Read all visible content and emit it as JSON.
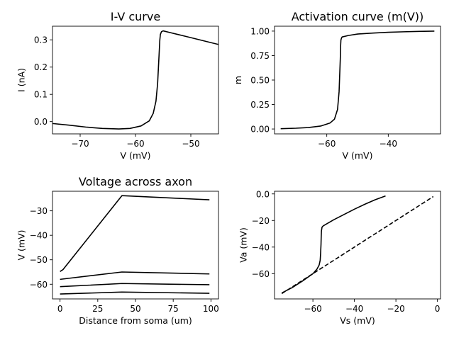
{
  "chart_data": [
    {
      "id": "p1",
      "type": "line",
      "title": "I-V curve",
      "xlabel": "V (mV)",
      "ylabel": "I (nA)",
      "xlim": [
        -75,
        -45
      ],
      "ylim": [
        -0.045,
        0.35
      ],
      "xticks": [
        -70,
        -60,
        -50
      ],
      "yticks": [
        0.0,
        0.1,
        0.2,
        0.3
      ],
      "grid": false,
      "series": [
        {
          "style": "solid",
          "color": "#000000",
          "x": [
            -75,
            -72,
            -69,
            -66,
            -63,
            -61,
            -59,
            -57.5,
            -56.8,
            -56.3,
            -56.0,
            -55.85,
            -55.7,
            -55.6,
            -55.5,
            -55.3,
            -55.0,
            -54.0,
            -52.0,
            -50.0,
            -48.0,
            -46.0,
            -45.0
          ],
          "y": [
            -0.007,
            -0.013,
            -0.02,
            -0.025,
            -0.027,
            -0.025,
            -0.016,
            0.003,
            0.03,
            0.075,
            0.14,
            0.2,
            0.26,
            0.3,
            0.32,
            0.33,
            0.333,
            0.328,
            0.318,
            0.308,
            0.298,
            0.288,
            0.283
          ]
        }
      ]
    },
    {
      "id": "p2",
      "type": "line",
      "title": "Activation curve (m(V))",
      "xlabel": "V (mV)",
      "ylabel": "m",
      "xlim": [
        -77,
        -23
      ],
      "ylim": [
        -0.05,
        1.05
      ],
      "xticks": [
        -60,
        -40
      ],
      "yticks": [
        0.0,
        0.25,
        0.5,
        0.75,
        1.0
      ],
      "ytick_labels": [
        "0.00",
        "0.25",
        "0.50",
        "0.75",
        "1.00"
      ],
      "grid": false,
      "series": [
        {
          "style": "solid",
          "color": "#000000",
          "x": [
            -75,
            -70,
            -66,
            -62,
            -59,
            -57.5,
            -56.5,
            -56.0,
            -55.8,
            -55.6,
            -55.5,
            -55.4,
            -55.2,
            -55.0,
            -53,
            -50,
            -45,
            -40,
            -35,
            -30,
            -25
          ],
          "y": [
            0.003,
            0.008,
            0.015,
            0.03,
            0.06,
            0.1,
            0.2,
            0.38,
            0.55,
            0.72,
            0.85,
            0.91,
            0.93,
            0.94,
            0.955,
            0.97,
            0.98,
            0.988,
            0.993,
            0.997,
            1.0
          ]
        }
      ]
    },
    {
      "id": "p3",
      "type": "line",
      "title": "Voltage across axon",
      "xlabel": "Distance from soma (um)",
      "ylabel": "V (mV)",
      "xlim": [
        -5,
        105
      ],
      "ylim": [
        -66,
        -22
      ],
      "xticks": [
        0,
        25,
        50,
        75,
        100
      ],
      "yticks": [
        -60,
        -50,
        -40,
        -30
      ],
      "grid": false,
      "series": [
        {
          "style": "solid",
          "color": "#000000",
          "x": [
            0,
            2,
            41,
            99
          ],
          "y": [
            -54.8,
            -54.0,
            -23.8,
            -25.5
          ]
        },
        {
          "style": "solid",
          "color": "#000000",
          "x": [
            0,
            41,
            99
          ],
          "y": [
            -58.0,
            -55.0,
            -55.8
          ]
        },
        {
          "style": "solid",
          "color": "#000000",
          "x": [
            0,
            41,
            99
          ],
          "y": [
            -61.0,
            -59.7,
            -60.2
          ]
        },
        {
          "style": "solid",
          "color": "#000000",
          "x": [
            0,
            41,
            99
          ],
          "y": [
            -64.0,
            -63.2,
            -63.7
          ]
        }
      ]
    },
    {
      "id": "p4",
      "type": "line",
      "title": "",
      "xlabel": "Vs (mV)",
      "ylabel": "Va (mV)",
      "xlim": [
        -78.5,
        1.5
      ],
      "ylim": [
        -79,
        2
      ],
      "xticks": [
        -60,
        -40,
        -20,
        0
      ],
      "yticks": [
        -60,
        -40,
        -20,
        0
      ],
      "grid": false,
      "series": [
        {
          "style": "solid",
          "color": "#000000",
          "x": [
            -75,
            -70,
            -65,
            -60,
            -58,
            -57,
            -56.5,
            -56.3,
            -56.1,
            -56.0,
            -55.9,
            -55.6,
            -55,
            -50,
            -45,
            -40,
            -35,
            -30,
            -25
          ],
          "y": [
            -74.5,
            -70.5,
            -65.5,
            -60,
            -56.5,
            -53.5,
            -50,
            -45,
            -38,
            -32,
            -28,
            -25,
            -24,
            -19.5,
            -15.5,
            -11.5,
            -7.8,
            -4.4,
            -1.5
          ]
        },
        {
          "style": "dashed",
          "color": "#000000",
          "x": [
            -75,
            -2
          ],
          "y": [
            -75,
            -2
          ]
        }
      ]
    }
  ]
}
